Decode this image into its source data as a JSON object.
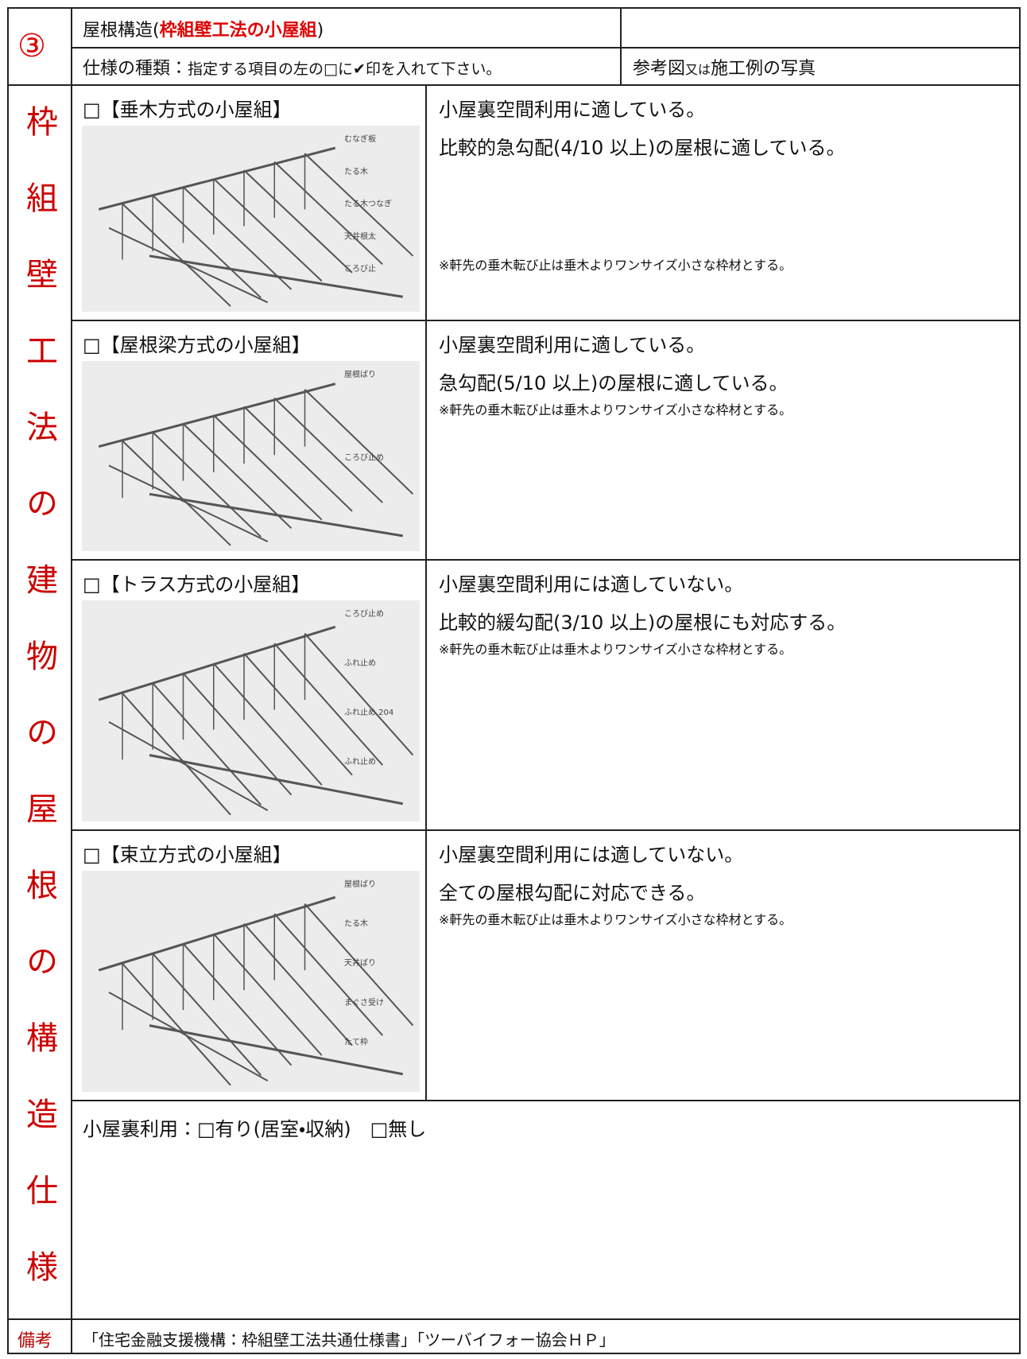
{
  "header": {
    "number": "③",
    "title_prefix": "屋根構造(",
    "title_highlight": "枠組壁工法の小屋組",
    "title_suffix": ")",
    "spec_label": "仕様の種類：",
    "spec_instruction": "指定する項目の左の□に✔印を入れて下さい。",
    "reference_label": "参考図",
    "reference_small": "又は",
    "reference_suffix": "施工例の写真"
  },
  "side_label": "枠組壁工法の建物の屋根の構造仕様",
  "options": [
    {
      "checkbox": "□",
      "label": "【垂木方式の小屋組】",
      "descriptions": [
        "小屋裏空間利用に適している。",
        "比較的急勾配(4/10 以上)の屋根に適している。"
      ],
      "note": "※軒先の垂木転び止は垂木よりワンサイズ小さな枠材とする。",
      "figure_labels": [
        "むなぎ板",
        "たる木",
        "たる木つなぎ",
        "天井根太",
        "ころび止"
      ]
    },
    {
      "checkbox": "□",
      "label": "【屋根梁方式の小屋組】",
      "descriptions": [
        "小屋裏空間利用に適している。",
        "急勾配(5/10 以上)の屋根に適している。"
      ],
      "note": "※軒先の垂木転び止は垂木よりワンサイズ小さな枠材とする。",
      "figure_labels": [
        "屋根ばり",
        "ころび止め"
      ]
    },
    {
      "checkbox": "□",
      "label": "【トラス方式の小屋組】",
      "descriptions": [
        "小屋裏空間利用には適していない。",
        "比較的緩勾配(3/10 以上)の屋根にも対応する。"
      ],
      "note": "※軒先の垂木転び止は垂木よりワンサイズ小さな枠材とする。",
      "figure_labels": [
        "ころび止め",
        "ふれ止め",
        "ふれ止め 204",
        "ふれ止め"
      ]
    },
    {
      "checkbox": "□",
      "label": "【束立方式の小屋組】",
      "descriptions": [
        "小屋裏空間利用には適していない。",
        "全ての屋根勾配に対応できる。"
      ],
      "note": "※軒先の垂木転び止は垂木よりワンサイズ小さな枠材とする。",
      "figure_labels": [
        "屋根ばり",
        "たる木",
        "天井ばり",
        "まぐさ受け",
        "たて枠"
      ]
    }
  ],
  "attic": {
    "label": "小屋裏利用：",
    "option_yes": "□有り(居室・収納)",
    "option_no": "□無し"
  },
  "remarks": {
    "label": "備考",
    "text": "「住宅金融支援機構：枠組壁工法共通仕様書」「ツーバイフォー協会ＨＰ」"
  }
}
